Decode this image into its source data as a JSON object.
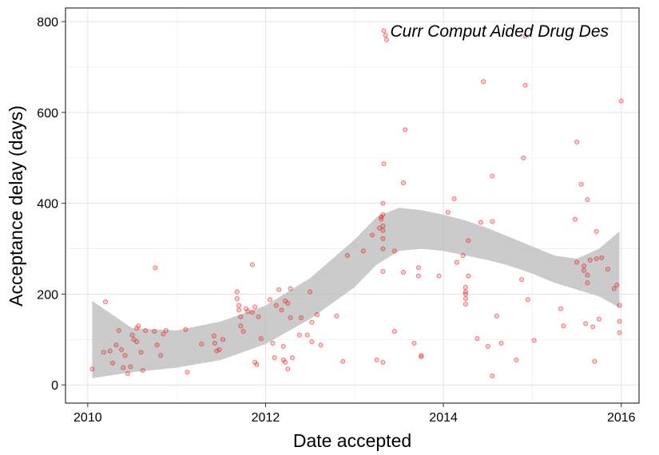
{
  "chart_data": {
    "type": "scatter",
    "title": "",
    "annotation": "Curr Comput Aided Drug Des",
    "xlabel": "Date accepted",
    "ylabel": "Acceptance delay (days)",
    "xlim": [
      2009.75,
      2016.2
    ],
    "ylim": [
      -40,
      830
    ],
    "x_ticks": [
      2010,
      2012,
      2014,
      2016
    ],
    "y_ticks": [
      0,
      200,
      400,
      600,
      800
    ],
    "grid": true,
    "legend": "none",
    "point_color": "#e31a1c",
    "band_color": "#bdbdbd",
    "points": [
      [
        2010.05,
        35
      ],
      [
        2010.2,
        183
      ],
      [
        2010.18,
        72
      ],
      [
        2010.25,
        75
      ],
      [
        2010.28,
        48
      ],
      [
        2010.32,
        88
      ],
      [
        2010.35,
        120
      ],
      [
        2010.38,
        78
      ],
      [
        2010.4,
        38
      ],
      [
        2010.42,
        65
      ],
      [
        2010.45,
        25
      ],
      [
        2010.48,
        40
      ],
      [
        2010.5,
        110
      ],
      [
        2010.52,
        100
      ],
      [
        2010.55,
        95
      ],
      [
        2010.55,
        125
      ],
      [
        2010.57,
        130
      ],
      [
        2010.6,
        72
      ],
      [
        2010.62,
        32
      ],
      [
        2010.65,
        120
      ],
      [
        2010.75,
        118
      ],
      [
        2010.78,
        88
      ],
      [
        2010.82,
        65
      ],
      [
        2010.76,
        258
      ],
      [
        2010.85,
        112
      ],
      [
        2010.88,
        120
      ],
      [
        2011.1,
        122
      ],
      [
        2011.12,
        28
      ],
      [
        2011.28,
        90
      ],
      [
        2011.42,
        108
      ],
      [
        2011.43,
        92
      ],
      [
        2011.45,
        75
      ],
      [
        2011.48,
        78
      ],
      [
        2011.52,
        100
      ],
      [
        2011.68,
        205
      ],
      [
        2011.68,
        190
      ],
      [
        2011.7,
        175
      ],
      [
        2011.7,
        165
      ],
      [
        2011.72,
        150
      ],
      [
        2011.72,
        130
      ],
      [
        2011.75,
        118
      ],
      [
        2011.78,
        168
      ],
      [
        2011.8,
        162
      ],
      [
        2011.85,
        265
      ],
      [
        2011.85,
        160
      ],
      [
        2011.88,
        172
      ],
      [
        2011.88,
        50
      ],
      [
        2011.9,
        45
      ],
      [
        2011.92,
        150
      ],
      [
        2011.95,
        102
      ],
      [
        2012.05,
        188
      ],
      [
        2012.08,
        92
      ],
      [
        2012.1,
        60
      ],
      [
        2012.12,
        175
      ],
      [
        2012.15,
        210
      ],
      [
        2012.18,
        165
      ],
      [
        2012.2,
        85
      ],
      [
        2012.2,
        55
      ],
      [
        2012.22,
        185
      ],
      [
        2012.22,
        50
      ],
      [
        2012.25,
        180
      ],
      [
        2012.25,
        35
      ],
      [
        2012.28,
        212
      ],
      [
        2012.28,
        148
      ],
      [
        2012.3,
        60
      ],
      [
        2012.38,
        110
      ],
      [
        2012.4,
        148
      ],
      [
        2012.47,
        110
      ],
      [
        2012.5,
        205
      ],
      [
        2012.52,
        138
      ],
      [
        2012.52,
        95
      ],
      [
        2012.58,
        155
      ],
      [
        2012.62,
        88
      ],
      [
        2012.8,
        152
      ],
      [
        2012.87,
        52
      ],
      [
        2012.92,
        285
      ],
      [
        2013.1,
        295
      ],
      [
        2013.2,
        330
      ],
      [
        2013.25,
        55
      ],
      [
        2013.28,
        345
      ],
      [
        2013.3,
        365
      ],
      [
        2013.3,
        370
      ],
      [
        2013.32,
        400
      ],
      [
        2013.32,
        375
      ],
      [
        2013.32,
        350
      ],
      [
        2013.32,
        340
      ],
      [
        2013.32,
        322
      ],
      [
        2013.32,
        300
      ],
      [
        2013.32,
        250
      ],
      [
        2013.32,
        50
      ],
      [
        2013.33,
        487
      ],
      [
        2013.33,
        780
      ],
      [
        2013.35,
        770
      ],
      [
        2013.36,
        760
      ],
      [
        2013.45,
        295
      ],
      [
        2013.45,
        118
      ],
      [
        2013.55,
        248
      ],
      [
        2013.55,
        445
      ],
      [
        2013.57,
        562
      ],
      [
        2013.67,
        92
      ],
      [
        2013.72,
        258
      ],
      [
        2013.72,
        240
      ],
      [
        2013.75,
        65
      ],
      [
        2013.75,
        62
      ],
      [
        2013.95,
        240
      ],
      [
        2014.05,
        380
      ],
      [
        2014.12,
        410
      ],
      [
        2014.15,
        270
      ],
      [
        2014.22,
        285
      ],
      [
        2014.25,
        200
      ],
      [
        2014.25,
        215
      ],
      [
        2014.25,
        205
      ],
      [
        2014.25,
        190
      ],
      [
        2014.25,
        178
      ],
      [
        2014.28,
        318
      ],
      [
        2014.28,
        240
      ],
      [
        2014.38,
        102
      ],
      [
        2014.42,
        358
      ],
      [
        2014.45,
        668
      ],
      [
        2014.5,
        85
      ],
      [
        2014.55,
        360
      ],
      [
        2014.55,
        460
      ],
      [
        2014.55,
        20
      ],
      [
        2014.6,
        152
      ],
      [
        2014.65,
        92
      ],
      [
        2014.82,
        55
      ],
      [
        2014.88,
        232
      ],
      [
        2014.9,
        500
      ],
      [
        2014.92,
        660
      ],
      [
        2014.92,
        768
      ],
      [
        2014.95,
        188
      ],
      [
        2015.02,
        98
      ],
      [
        2015.32,
        168
      ],
      [
        2015.35,
        130
      ],
      [
        2015.48,
        365
      ],
      [
        2015.5,
        535
      ],
      [
        2015.5,
        270
      ],
      [
        2015.55,
        442
      ],
      [
        2015.58,
        262
      ],
      [
        2015.58,
        252
      ],
      [
        2015.6,
        135
      ],
      [
        2015.62,
        242
      ],
      [
        2015.62,
        408
      ],
      [
        2015.62,
        225
      ],
      [
        2015.65,
        275
      ],
      [
        2015.68,
        128
      ],
      [
        2015.7,
        52
      ],
      [
        2015.72,
        278
      ],
      [
        2015.72,
        338
      ],
      [
        2015.75,
        145
      ],
      [
        2015.78,
        280
      ],
      [
        2015.85,
        255
      ],
      [
        2015.92,
        212
      ],
      [
        2015.95,
        220
      ],
      [
        2015.98,
        175
      ],
      [
        2015.98,
        140
      ],
      [
        2015.98,
        115
      ],
      [
        2016.0,
        625
      ]
    ],
    "band": {
      "x": [
        2010.05,
        2010.5,
        2011.0,
        2011.5,
        2012.0,
        2012.5,
        2013.0,
        2013.25,
        2013.5,
        2013.75,
        2014.0,
        2014.25,
        2014.5,
        2014.75,
        2015.0,
        2015.25,
        2015.5,
        2015.75,
        2015.98
      ],
      "lower": [
        15,
        28,
        38,
        55,
        90,
        145,
        215,
        265,
        295,
        300,
        295,
        285,
        275,
        262,
        245,
        225,
        210,
        195,
        170
      ],
      "upper": [
        185,
        125,
        120,
        140,
        175,
        235,
        320,
        370,
        390,
        385,
        375,
        362,
        345,
        325,
        305,
        285,
        278,
        300,
        338
      ]
    }
  }
}
